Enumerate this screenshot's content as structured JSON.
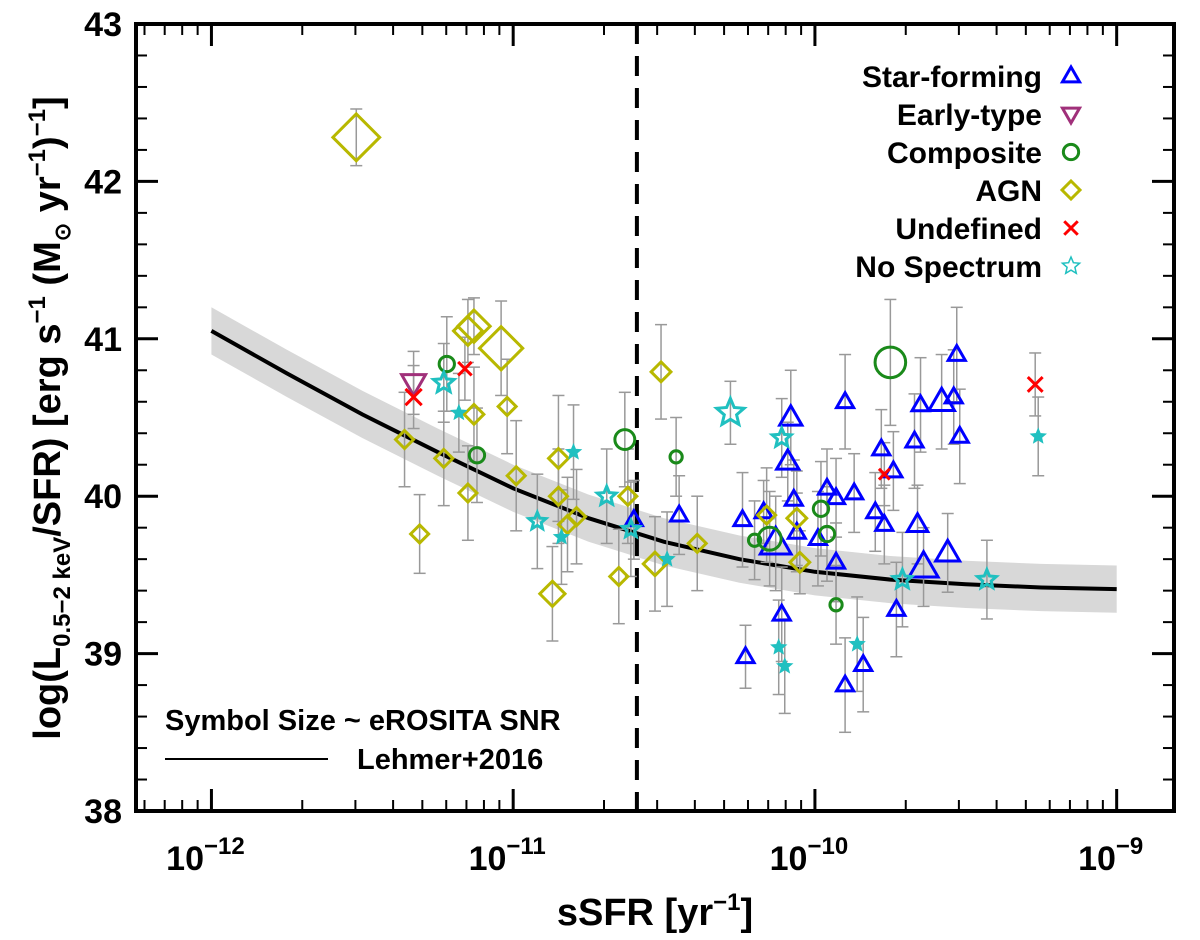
{
  "chart_data": {
    "type": "scatter",
    "x_scale": "log",
    "xlim": [
      -12.25,
      -8.81
    ],
    "ylim": [
      38,
      43
    ],
    "xlabel": "sSFR [yr",
    "xlabel_sup": "−1",
    "xlabel_end": "]",
    "ylabel": {
      "p1": "log(L",
      "sub": "0.5−2 keV",
      "p2": "/SFR) [erg s",
      "sup1": "−1",
      "p3": " (M",
      "sub2": "⊙",
      "p4": " yr",
      "sup2": "−1",
      "p5": ")",
      "sup3": "−1",
      "p6": "]"
    },
    "x_ticks": [
      {
        "value": -12,
        "base": "10",
        "exp": "−12"
      },
      {
        "value": -11,
        "base": "10",
        "exp": "−11"
      },
      {
        "value": -10,
        "base": "10",
        "exp": "−10"
      },
      {
        "value": -9,
        "base": "10",
        "exp": "−9"
      }
    ],
    "y_ticks": [
      {
        "value": 38,
        "label": "38"
      },
      {
        "value": 39,
        "label": "39"
      },
      {
        "value": 40,
        "label": "40"
      },
      {
        "value": 41,
        "label": "41"
      },
      {
        "value": 42,
        "label": "42"
      },
      {
        "value": 43,
        "label": "43"
      }
    ],
    "vline_x": -10.59,
    "annotation": "Symbol Size ~ eROSITA SNR",
    "model": {
      "name": "Lehmer+2016",
      "x": [
        -12,
        -11.75,
        -11.5,
        -11.25,
        -11,
        -10.75,
        -10.5,
        -10.25,
        -10,
        -9.75,
        -9.5,
        -9.25,
        -9
      ],
      "y": [
        41.05,
        40.78,
        40.52,
        40.28,
        40.05,
        39.86,
        39.71,
        39.6,
        39.52,
        39.47,
        39.44,
        39.42,
        39.41
      ],
      "band_halfwidth": 0.15
    },
    "legend": [
      {
        "label": "Star-forming",
        "marker": "triangle",
        "color": "#0000ff"
      },
      {
        "label": "Early-type",
        "marker": "triangle-down",
        "color": "#a0307a"
      },
      {
        "label": "Composite",
        "marker": "circle",
        "color": "#1a8a1a"
      },
      {
        "label": "AGN",
        "marker": "diamond",
        "color": "#b8b800"
      },
      {
        "label": "Undefined",
        "marker": "x",
        "color": "#ff0000"
      },
      {
        "label": "No Spectrum",
        "marker": "star",
        "color": "#20c0c0"
      }
    ],
    "series": [
      {
        "name": "Star-forming",
        "marker": "triangle",
        "color": "#0000ff",
        "points": [
          [
            -10.6,
            39.85,
            0.25,
            1
          ],
          [
            -10.45,
            39.88,
            0.25,
            1
          ],
          [
            -10.24,
            39.85,
            0.3,
            1
          ],
          [
            -10.23,
            38.98,
            0.2,
            1
          ],
          [
            -10.17,
            39.9,
            0.2,
            1
          ],
          [
            -10.13,
            39.7,
            0.3,
            1.8
          ],
          [
            -10.08,
            40.5,
            0.3,
            1.3
          ],
          [
            -10.07,
            39.98,
            0.25,
            1
          ],
          [
            -10.11,
            39.25,
            0.3,
            1
          ],
          [
            -10.09,
            40.22,
            0.25,
            1.3
          ],
          [
            -10.06,
            39.77,
            0.25,
            1
          ],
          [
            -9.99,
            39.73,
            0.3,
            1
          ],
          [
            -9.96,
            40.05,
            0.25,
            1
          ],
          [
            -9.93,
            39.58,
            0.25,
            1
          ],
          [
            -9.9,
            40.6,
            0.3,
            1
          ],
          [
            -9.87,
            40.02,
            0.25,
            1
          ],
          [
            -9.93,
            39.99,
            0.25,
            1
          ],
          [
            -9.9,
            38.8,
            0.3,
            1
          ],
          [
            -9.8,
            39.9,
            0.25,
            1
          ],
          [
            -9.78,
            40.3,
            0.25,
            1
          ],
          [
            -9.77,
            39.82,
            0.25,
            1
          ],
          [
            -9.74,
            40.16,
            0.25,
            1
          ],
          [
            -9.84,
            38.93,
            0.3,
            1
          ],
          [
            -9.73,
            39.28,
            0.3,
            1
          ],
          [
            -9.67,
            40.35,
            0.3,
            1
          ],
          [
            -9.66,
            39.82,
            0.25,
            1.2
          ],
          [
            -9.65,
            40.58,
            0.3,
            1
          ],
          [
            -9.64,
            39.55,
            0.25,
            1.7
          ],
          [
            -9.58,
            40.6,
            0.3,
            1.5
          ],
          [
            -9.54,
            40.63,
            0.3,
            1
          ],
          [
            -9.53,
            40.9,
            0.3,
            1
          ],
          [
            -9.52,
            40.38,
            0.3,
            1
          ],
          [
            -9.56,
            39.64,
            0.25,
            1.4
          ]
        ]
      },
      {
        "name": "Early-type",
        "marker": "triangle-down",
        "color": "#a0307a",
        "points": [
          [
            -11.33,
            40.72,
            0.2,
            1.4
          ]
        ]
      },
      {
        "name": "Composite",
        "marker": "circle",
        "color": "#1a8a1a",
        "points": [
          [
            -11.22,
            40.84,
            0.3,
            1
          ],
          [
            -11.12,
            40.26,
            0.3,
            1
          ],
          [
            -10.63,
            40.36,
            0.3,
            1.3
          ],
          [
            -10.46,
            40.25,
            0.25,
            0.8
          ],
          [
            -10.2,
            39.72,
            0.25,
            0.8
          ],
          [
            -10.15,
            39.73,
            0.3,
            1.5
          ],
          [
            -9.98,
            39.92,
            0.3,
            1
          ],
          [
            -9.96,
            39.76,
            0.3,
            1
          ],
          [
            -9.93,
            39.31,
            0.25,
            0.8
          ],
          [
            -9.75,
            40.85,
            0.4,
            2.0
          ]
        ]
      },
      {
        "name": "AGN",
        "marker": "diamond",
        "color": "#b8b800",
        "points": [
          [
            -11.52,
            42.28,
            0.18,
            2.6
          ],
          [
            -11.36,
            40.36,
            0.3,
            1
          ],
          [
            -11.31,
            39.76,
            0.25,
            1
          ],
          [
            -11.23,
            40.24,
            0.3,
            1
          ],
          [
            -11.15,
            40.02,
            0.3,
            1
          ],
          [
            -11.15,
            41.05,
            0.2,
            1.6
          ],
          [
            -11.13,
            41.08,
            0.18,
            1.8
          ],
          [
            -11.13,
            40.52,
            0.3,
            1.1
          ],
          [
            -11.04,
            40.94,
            0.3,
            2.4
          ],
          [
            -11.02,
            40.57,
            0.3,
            1
          ],
          [
            -10.99,
            40.13,
            0.35,
            1
          ],
          [
            -10.87,
            39.38,
            0.3,
            1.4
          ],
          [
            -10.85,
            40.0,
            0.3,
            1
          ],
          [
            -10.85,
            40.24,
            0.4,
            1.1
          ],
          [
            -10.82,
            39.82,
            0.3,
            1
          ],
          [
            -10.79,
            39.87,
            0.3,
            1
          ],
          [
            -10.65,
            39.49,
            0.3,
            1
          ],
          [
            -10.62,
            40.0,
            0.3,
            1
          ],
          [
            -10.53,
            39.57,
            0.3,
            1.3
          ],
          [
            -10.51,
            40.79,
            0.3,
            1.1
          ],
          [
            -10.39,
            39.7,
            0.3,
            1
          ],
          [
            -10.05,
            39.58,
            0.2,
            1.1
          ],
          [
            -10.06,
            39.86,
            0.3,
            1.1
          ],
          [
            -10.16,
            39.88,
            0.3,
            1
          ]
        ]
      },
      {
        "name": "Undefined",
        "marker": "x",
        "color": "#ff0000",
        "points": [
          [
            -11.33,
            40.63,
            0.2,
            1.2
          ],
          [
            -11.16,
            40.81,
            0.2,
            1
          ],
          [
            -9.77,
            40.14,
            0.2,
            0.8
          ],
          [
            -9.27,
            40.71,
            0.2,
            1.1
          ]
        ]
      },
      {
        "name": "No Spectrum",
        "marker": "star",
        "color": "#20c0c0",
        "points": [
          [
            -11.23,
            40.72,
            0.25,
            1.2
          ],
          [
            -11.18,
            40.53,
            0.25,
            0.8
          ],
          [
            -10.92,
            39.84,
            0.3,
            1
          ],
          [
            -10.84,
            39.74,
            0.3,
            0.8
          ],
          [
            -10.8,
            40.28,
            0.3,
            0.8
          ],
          [
            -10.69,
            40.0,
            0.3,
            1.1
          ],
          [
            -10.61,
            39.79,
            0.3,
            1
          ],
          [
            -10.49,
            39.6,
            0.3,
            0.8
          ],
          [
            -10.28,
            40.53,
            0.2,
            1.6
          ],
          [
            -10.11,
            40.37,
            0.25,
            1.1
          ],
          [
            -10.12,
            39.04,
            0.3,
            0.8
          ],
          [
            -10.1,
            38.92,
            0.3,
            0.8
          ],
          [
            -9.86,
            39.06,
            0.3,
            0.8
          ],
          [
            -9.71,
            39.47,
            0.3,
            1.1
          ],
          [
            -9.43,
            39.47,
            0.25,
            1.1
          ],
          [
            -9.26,
            40.38,
            0.25,
            0.8
          ]
        ]
      }
    ]
  }
}
